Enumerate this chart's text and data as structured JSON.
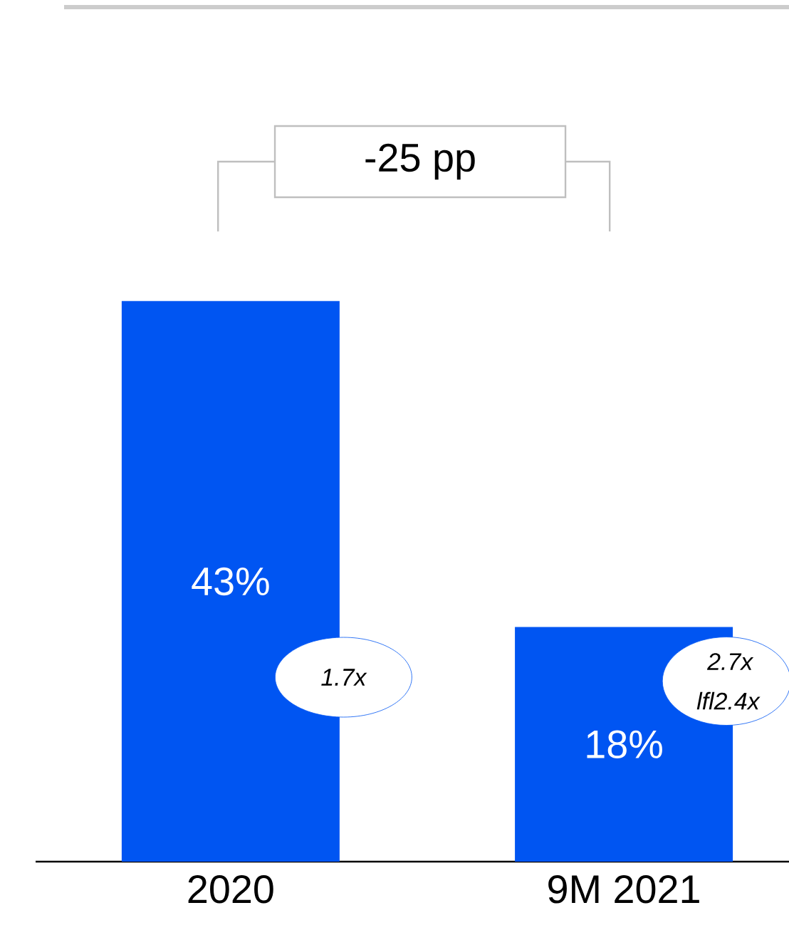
{
  "chart_data": {
    "type": "bar",
    "categories": [
      "2020",
      "9M 2021"
    ],
    "values": [
      43,
      18
    ],
    "value_labels": [
      "43%",
      "18%"
    ],
    "color": "#0055f2",
    "annotations": [
      "-25 pp",
      "1.7x",
      "2.7x",
      "lfl2.4x"
    ]
  }
}
